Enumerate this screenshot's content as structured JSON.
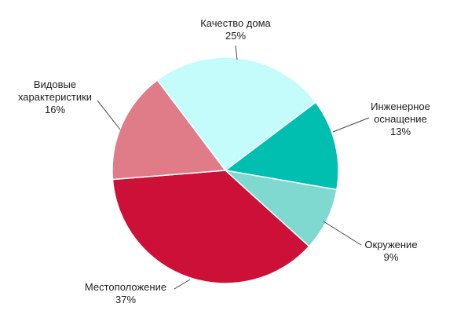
{
  "chart_data": {
    "type": "pie",
    "categories": [
      "Качество дома",
      "Инженерное оснащение",
      "Окружение",
      "Местоположение",
      "Видовые характеристики"
    ],
    "values": [
      25,
      13,
      9,
      37,
      16
    ],
    "value_labels": [
      "25%",
      "13%",
      "9%",
      "37%",
      "16%"
    ],
    "colors": [
      "#c4fbfb",
      "#00bfb0",
      "#7fd9d1",
      "#cc1038",
      "#e07b88"
    ]
  }
}
